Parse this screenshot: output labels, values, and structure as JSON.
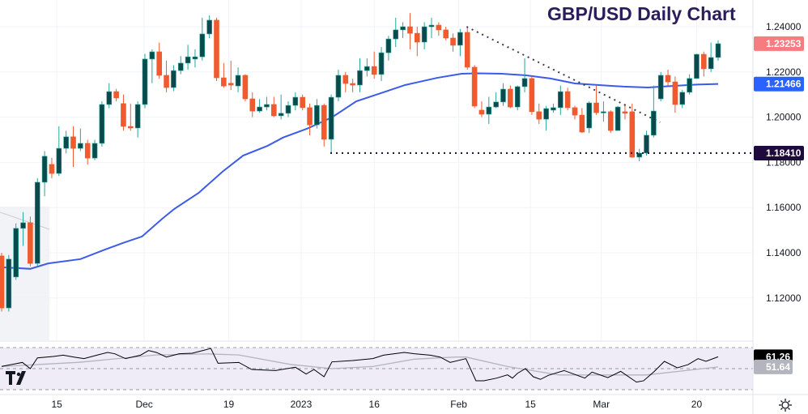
{
  "title": "GBP/USD Daily Chart",
  "colors": {
    "up": "#0b4a4c",
    "up_wick": "#26a69a",
    "down": "#ef5a2f",
    "ma": "#3c5be8",
    "rsi": "#000000",
    "rsi_signal": "#b2b5be",
    "last_price": "#f77c80",
    "ma_tag": "#2962ff",
    "support_tag": "#1e0a3c"
  },
  "chart_data": {
    "type": "candlestick",
    "title": "GBP/USD Daily Chart",
    "ylim": [
      1.1,
      1.25
    ],
    "y_ticks": [
      "1.12000",
      "1.14000",
      "1.16000",
      "1.18000",
      "1.20000",
      "1.22000",
      "1.24000"
    ],
    "y_tick_values": [
      1.12,
      1.14,
      1.16,
      1.18,
      1.2,
      1.22,
      1.24
    ],
    "x_ticks": [
      {
        "label": "15",
        "index": 7.7
      },
      {
        "label": "Dec",
        "index": 19.9
      },
      {
        "label": "19",
        "index": 31.7
      },
      {
        "label": "2023",
        "index": 41.8
      },
      {
        "label": "16",
        "index": 52
      },
      {
        "label": "Feb",
        "index": 63.8
      },
      {
        "label": "15",
        "index": 73.8
      },
      {
        "label": "Mar",
        "index": 83.7
      },
      {
        "label": "20",
        "index": 97
      }
    ],
    "candles_ohlc": [
      [
        1.1386,
        1.14,
        1.114,
        1.1156
      ],
      [
        1.1156,
        1.139,
        1.114,
        1.1372
      ],
      [
        1.1293,
        1.153,
        1.128,
        1.1508
      ],
      [
        1.1508,
        1.158,
        1.143,
        1.1533
      ],
      [
        1.1533,
        1.156,
        1.134,
        1.1353
      ],
      [
        1.1353,
        1.173,
        1.134,
        1.1712
      ],
      [
        1.1712,
        1.185,
        1.165,
        1.1827
      ],
      [
        1.1791,
        1.182,
        1.173,
        1.1751
      ],
      [
        1.1751,
        1.196,
        1.174,
        1.1862
      ],
      [
        1.1862,
        1.194,
        1.184,
        1.1913
      ],
      [
        1.1913,
        1.196,
        1.178,
        1.1862
      ],
      [
        1.1862,
        1.195,
        1.185,
        1.1884
      ],
      [
        1.1884,
        1.19,
        1.179,
        1.1819
      ],
      [
        1.1819,
        1.19,
        1.181,
        1.1884
      ],
      [
        1.1884,
        1.207,
        1.187,
        1.2056
      ],
      [
        1.2056,
        1.215,
        1.204,
        1.2113
      ],
      [
        1.2113,
        1.2125,
        1.207,
        1.2085
      ],
      [
        1.206,
        1.21,
        1.194,
        1.1959
      ],
      [
        1.1959,
        1.206,
        1.194,
        1.1952
      ],
      [
        1.1952,
        1.207,
        1.191,
        1.2056
      ],
      [
        1.2056,
        1.228,
        1.204,
        1.2257
      ],
      [
        1.2257,
        1.23,
        1.215,
        1.2289
      ],
      [
        1.2289,
        1.233,
        1.217,
        1.2185
      ],
      [
        1.2185,
        1.225,
        1.211,
        1.2131
      ],
      [
        1.2131,
        1.223,
        1.2115,
        1.2206
      ],
      [
        1.2206,
        1.227,
        1.219,
        1.2239
      ],
      [
        1.2239,
        1.232,
        1.221,
        1.2267
      ],
      [
        1.2257,
        1.23,
        1.222,
        1.2267
      ],
      [
        1.2267,
        1.244,
        1.225,
        1.2368
      ],
      [
        1.2368,
        1.245,
        1.235,
        1.2429
      ],
      [
        1.2429,
        1.244,
        1.216,
        1.2174
      ],
      [
        1.2174,
        1.224,
        1.213,
        1.2138
      ],
      [
        1.215,
        1.225,
        1.212,
        1.2142
      ],
      [
        1.2138,
        1.222,
        1.211,
        1.2185
      ],
      [
        1.2185,
        1.219,
        1.207,
        1.2081
      ],
      [
        1.2081,
        1.211,
        1.2,
        1.2027
      ],
      [
        1.2027,
        1.208,
        1.202,
        1.2045
      ],
      [
        1.2045,
        1.209,
        1.203,
        1.2056
      ],
      [
        1.2056,
        1.209,
        1.2,
        1.2006
      ],
      [
        1.2006,
        1.21,
        1.199,
        1.2017
      ],
      [
        1.2017,
        1.207,
        1.2,
        1.2052
      ],
      [
        1.2052,
        1.211,
        1.203,
        1.2088
      ],
      [
        1.2088,
        1.21,
        1.203,
        1.2042
      ],
      [
        1.2042,
        1.206,
        1.192,
        1.1966
      ],
      [
        1.1966,
        1.208,
        1.195,
        1.2052
      ],
      [
        1.2052,
        1.206,
        1.187,
        1.1902
      ],
      [
        1.1902,
        1.21,
        1.1841,
        1.2088
      ],
      [
        1.2088,
        1.221,
        1.207,
        1.2185
      ],
      [
        1.2185,
        1.22,
        1.211,
        1.2149
      ],
      [
        1.2149,
        1.217,
        1.211,
        1.2142
      ],
      [
        1.2142,
        1.226,
        1.211,
        1.2206
      ],
      [
        1.2206,
        1.226,
        1.218,
        1.2224
      ],
      [
        1.2224,
        1.229,
        1.217,
        1.2189
      ],
      [
        1.2189,
        1.231,
        1.216,
        1.2285
      ],
      [
        1.2285,
        1.236,
        1.225,
        1.2346
      ],
      [
        1.2346,
        1.244,
        1.231,
        1.2386
      ],
      [
        1.2386,
        1.242,
        1.235,
        1.24
      ],
      [
        1.24,
        1.246,
        1.23,
        1.2371
      ],
      [
        1.2371,
        1.24,
        1.227,
        1.2332
      ],
      [
        1.2332,
        1.242,
        1.23,
        1.24
      ],
      [
        1.24,
        1.244,
        1.235,
        1.2407
      ],
      [
        1.2407,
        1.242,
        1.236,
        1.2386
      ],
      [
        1.2386,
        1.24,
        1.234,
        1.235
      ],
      [
        1.235,
        1.237,
        1.229,
        1.2318
      ],
      [
        1.2318,
        1.239,
        1.227,
        1.2375
      ],
      [
        1.2375,
        1.24,
        1.221,
        1.2221
      ],
      [
        1.2221,
        1.223,
        1.204,
        1.2049
      ],
      [
        1.2031,
        1.207,
        1.2,
        1.2013
      ],
      [
        1.2013,
        1.209,
        1.197,
        1.2045
      ],
      [
        1.2045,
        1.211,
        1.204,
        1.2067
      ],
      [
        1.2067,
        1.215,
        1.205,
        1.2124
      ],
      [
        1.2124,
        1.214,
        1.204,
        1.2045
      ],
      [
        1.2045,
        1.214,
        1.203,
        1.2135
      ],
      [
        1.2135,
        1.226,
        1.211,
        1.2171
      ],
      [
        1.2171,
        1.218,
        1.201,
        1.2024
      ],
      [
        1.2024,
        1.206,
        1.197,
        1.1991
      ],
      [
        1.1991,
        1.205,
        1.194,
        1.2038
      ],
      [
        1.2031,
        1.206,
        1.202,
        1.2042
      ],
      [
        1.2042,
        1.214,
        1.201,
        1.2113
      ],
      [
        1.2113,
        1.213,
        1.203,
        1.2042
      ],
      [
        1.2042,
        1.205,
        1.199,
        1.2009
      ],
      [
        1.2009,
        1.204,
        1.193,
        1.1934
      ],
      [
        1.1952,
        1.207,
        1.193,
        1.2063
      ],
      [
        1.2063,
        1.214,
        1.201,
        1.202
      ],
      [
        1.202,
        1.207,
        1.198,
        1.2024
      ],
      [
        1.2024,
        1.203,
        1.193,
        1.1941
      ],
      [
        1.1941,
        1.205,
        1.194,
        1.2045
      ],
      [
        1.2024,
        1.206,
        1.199,
        1.2017
      ],
      [
        1.2024,
        1.206,
        1.182,
        1.1823
      ],
      [
        1.1823,
        1.186,
        1.1805,
        1.1841
      ],
      [
        1.1841,
        1.194,
        1.183,
        1.192
      ],
      [
        1.192,
        1.214,
        1.191,
        1.2027
      ],
      [
        1.2081,
        1.22,
        1.207,
        1.2185
      ],
      [
        1.2185,
        1.221,
        1.214,
        1.2156
      ],
      [
        1.2156,
        1.218,
        1.202,
        1.2056
      ],
      [
        1.2056,
        1.212,
        1.204,
        1.211
      ],
      [
        1.211,
        1.219,
        1.21,
        1.2171
      ],
      [
        1.2171,
        1.228,
        1.217,
        1.2278
      ],
      [
        1.2278,
        1.229,
        1.218,
        1.2214
      ],
      [
        1.2214,
        1.233,
        1.22,
        1.2264
      ],
      [
        1.2264,
        1.234,
        1.225,
        1.2325
      ]
    ],
    "moving_average": [
      [
        0,
        1.1336
      ],
      [
        4,
        1.1329
      ],
      [
        6.5,
        1.1353
      ],
      [
        11,
        1.1372
      ],
      [
        14.5,
        1.1415
      ],
      [
        17,
        1.1444
      ],
      [
        19.6,
        1.1472
      ],
      [
        22.4,
        1.155
      ],
      [
        24.1,
        1.1594
      ],
      [
        27.5,
        1.1665
      ],
      [
        30.8,
        1.1758
      ],
      [
        33.7,
        1.183
      ],
      [
        37.1,
        1.1873
      ],
      [
        39.3,
        1.191
      ],
      [
        42.7,
        1.195
      ],
      [
        46.1,
        1.1999
      ],
      [
        49.5,
        1.207
      ],
      [
        52.9,
        1.2106
      ],
      [
        56.3,
        1.2142
      ],
      [
        60.8,
        1.2174
      ],
      [
        64.2,
        1.2192
      ],
      [
        66.4,
        1.2194
      ],
      [
        69.8,
        1.2192
      ],
      [
        73.2,
        1.2185
      ],
      [
        76.6,
        1.2171
      ],
      [
        80,
        1.2149
      ],
      [
        83.4,
        1.2142
      ],
      [
        86.8,
        1.2135
      ],
      [
        90.2,
        1.2131
      ],
      [
        93.6,
        1.2138
      ],
      [
        97,
        1.2144
      ],
      [
        100,
        1.2147
      ]
    ],
    "support_level": 1.1841,
    "trendline": [
      [
        64.9,
        1.24
      ],
      [
        91.9,
        1.1977
      ]
    ],
    "price_tags": {
      "last": "1.23253",
      "ma": "1.21466",
      "support": "1.18410"
    },
    "rsi": {
      "levels": [
        70,
        50,
        30
      ],
      "values": [
        [
          0,
          52.1
        ],
        [
          1.8,
          54.4
        ],
        [
          2.9,
          55.9
        ],
        [
          4,
          50
        ],
        [
          5,
          60.2
        ],
        [
          7.2,
          61.5
        ],
        [
          8.6,
          62.8
        ],
        [
          10.1,
          61
        ],
        [
          11.5,
          59.5
        ],
        [
          13.3,
          62.8
        ],
        [
          14.8,
          65.4
        ],
        [
          15.8,
          64.1
        ],
        [
          17.3,
          59.5
        ],
        [
          19.4,
          62.8
        ],
        [
          20.5,
          67.2
        ],
        [
          21.6,
          65.4
        ],
        [
          23,
          61
        ],
        [
          24.8,
          64.1
        ],
        [
          26.6,
          64.6
        ],
        [
          28.1,
          67.2
        ],
        [
          29.2,
          69.2
        ],
        [
          30.2,
          55.1
        ],
        [
          33.1,
          55.9
        ],
        [
          34.9,
          49.2
        ],
        [
          38.2,
          48.2
        ],
        [
          41,
          51.3
        ],
        [
          42.5,
          44.9
        ],
        [
          43.6,
          49.2
        ],
        [
          45,
          42.3
        ],
        [
          46.1,
          56.4
        ],
        [
          49,
          57.7
        ],
        [
          51.8,
          59.5
        ],
        [
          53.3,
          62.8
        ],
        [
          56.2,
          65.4
        ],
        [
          57.6,
          64.1
        ],
        [
          59.8,
          62.8
        ],
        [
          61.2,
          61
        ],
        [
          62.6,
          55.9
        ],
        [
          64.8,
          59.5
        ],
        [
          66.2,
          38.5
        ],
        [
          67.3,
          38.5
        ],
        [
          69.1,
          41
        ],
        [
          70.6,
          44.1
        ],
        [
          71.3,
          41
        ],
        [
          72,
          45.6
        ],
        [
          73.1,
          50
        ],
        [
          74.2,
          42.3
        ],
        [
          75.2,
          39.8
        ],
        [
          76.3,
          43.6
        ],
        [
          78.5,
          48.2
        ],
        [
          81.4,
          41
        ],
        [
          82.4,
          46.7
        ],
        [
          84.6,
          41.5
        ],
        [
          86.4,
          47.4
        ],
        [
          88.6,
          37.2
        ],
        [
          89.6,
          38.5
        ],
        [
          91.1,
          47.4
        ],
        [
          92.5,
          56.9
        ],
        [
          94.3,
          50.8
        ],
        [
          95.8,
          53.8
        ],
        [
          97.2,
          59.5
        ],
        [
          98.3,
          56.9
        ],
        [
          100,
          61.26
        ]
      ],
      "signal": [
        [
          0,
          52
        ],
        [
          10.8,
          56
        ],
        [
          21.6,
          63
        ],
        [
          28.8,
          64
        ],
        [
          33.1,
          63
        ],
        [
          40.3,
          54
        ],
        [
          46.1,
          50
        ],
        [
          51.8,
          52
        ],
        [
          57.6,
          59
        ],
        [
          63.4,
          61
        ],
        [
          64.8,
          61
        ],
        [
          70.6,
          52
        ],
        [
          77.8,
          44
        ],
        [
          90,
          44
        ],
        [
          100,
          51.64
        ]
      ],
      "value_tag": "61.26",
      "signal_tag": "51.64"
    }
  }
}
